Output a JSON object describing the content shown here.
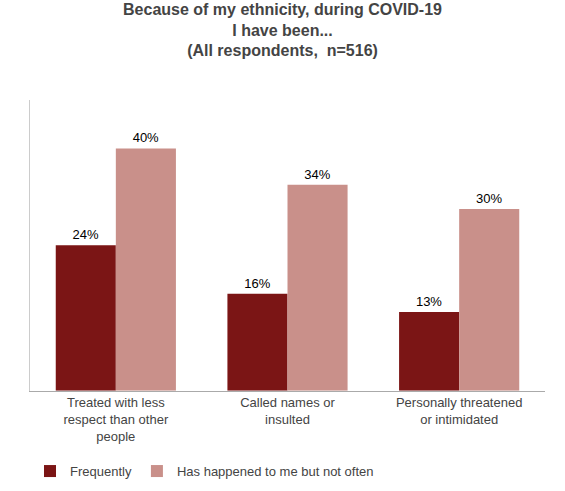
{
  "chart_data": {
    "type": "bar",
    "title": "Because of my ethnicity, during COVID-19\nI have been...\n(All respondents,  n=516)",
    "categories": [
      "Treated with less\nrespect than other\npeople",
      "Called names or\ninsulted",
      "Personally threatened\nor intimidated"
    ],
    "series": [
      {
        "name": "Frequently",
        "color": "#7B1515",
        "values": [
          24,
          16,
          13
        ],
        "value_labels": [
          "24%",
          "16%",
          "13%"
        ]
      },
      {
        "name": "Has happened to me but not often",
        "color": "#C9908A",
        "values": [
          40,
          34,
          30
        ],
        "value_labels": [
          "40%",
          "34%",
          "30%"
        ]
      }
    ],
    "ylim": [
      0,
      48
    ],
    "grid": false,
    "legend": "bottom",
    "data_labels": true,
    "tick_labels": "x"
  }
}
